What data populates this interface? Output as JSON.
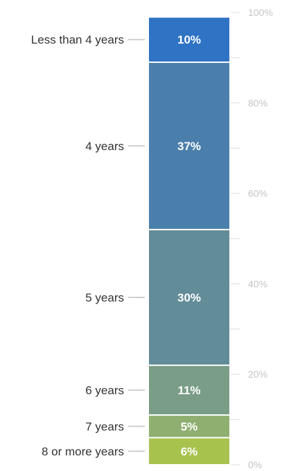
{
  "chart_data": {
    "type": "bar",
    "stacked": true,
    "title": "",
    "xlabel": "",
    "ylabel": "",
    "ylim": [
      0,
      100
    ],
    "yticks": [
      "0%",
      "20%",
      "40%",
      "60%",
      "80%",
      "100%"
    ],
    "minor_ticks": true,
    "categories": [
      "8 or more years",
      "7 years",
      "6 years",
      "5 years",
      "4 years",
      "Less than 4 years"
    ],
    "values": [
      6,
      5,
      11,
      30,
      37,
      10
    ],
    "value_labels": [
      "6%",
      "5%",
      "11%",
      "30%",
      "37%",
      "10%"
    ],
    "colors": [
      "#a8c24e",
      "#8faf71",
      "#7a9d87",
      "#628c98",
      "#4b7fab",
      "#2f73c4"
    ]
  }
}
